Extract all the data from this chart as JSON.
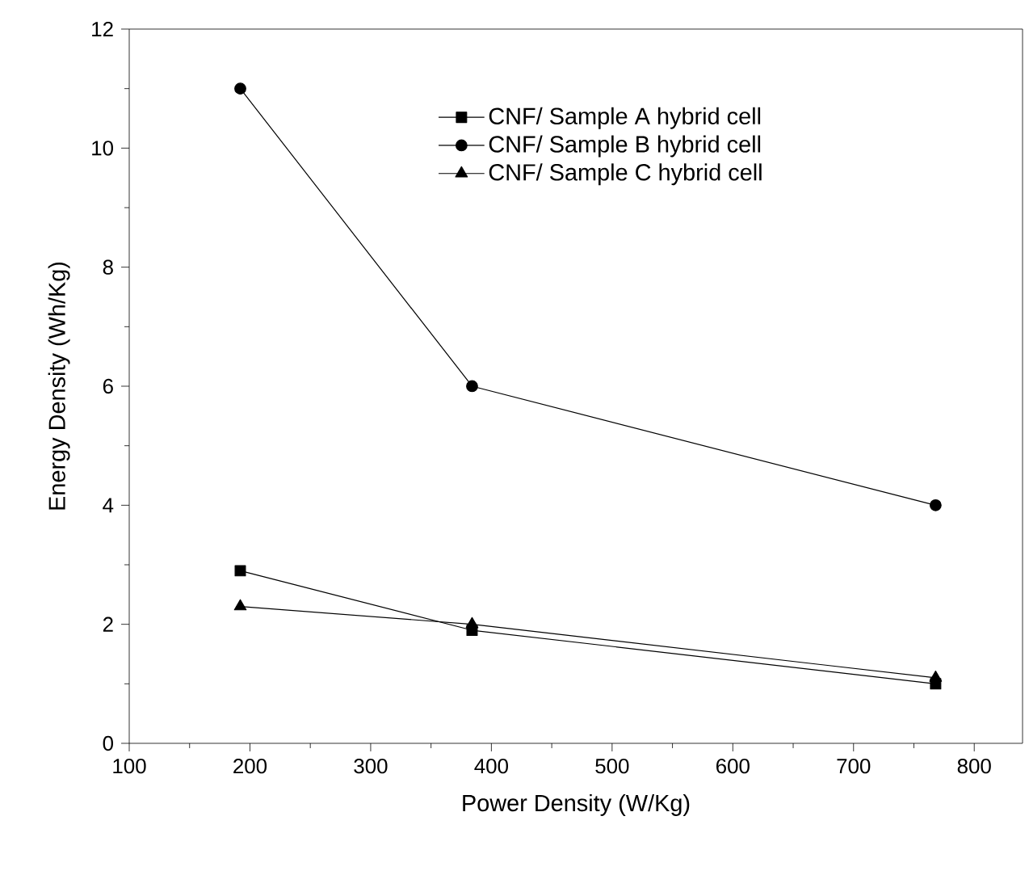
{
  "chart_data": {
    "type": "line",
    "xlabel": "Power Density (W/Kg)",
    "ylabel": "Energy Density (Wh/Kg)",
    "xlim": [
      100,
      840
    ],
    "xticks": [
      100,
      200,
      300,
      400,
      500,
      600,
      700,
      800
    ],
    "ylim": [
      0,
      12
    ],
    "yticks": [
      0,
      2,
      4,
      6,
      8,
      10,
      12
    ],
    "legend": "top right",
    "grid": false,
    "series": [
      {
        "name": "CNF/ Sample A hybrid cell",
        "color": "#000000",
        "marker": "square",
        "x": [
          192,
          384,
          768
        ],
        "values": [
          2.9,
          1.9,
          1.0
        ]
      },
      {
        "name": "CNF/ Sample B hybrid cell",
        "color": "#000000",
        "marker": "circle",
        "x": [
          192,
          384,
          768
        ],
        "values": [
          11,
          6,
          4
        ]
      },
      {
        "name": "CNF/ Sample C hybrid cell",
        "color": "#000000",
        "marker": "triangle",
        "x": [
          192,
          384,
          768
        ],
        "values": [
          2.3,
          2.0,
          1.1
        ]
      }
    ]
  }
}
